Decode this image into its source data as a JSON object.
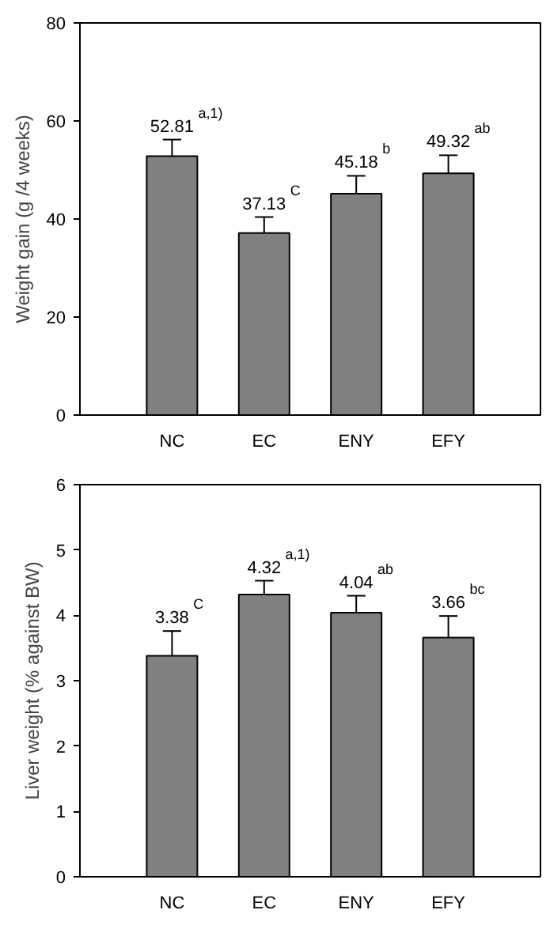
{
  "chart_data": [
    {
      "type": "bar",
      "ylabel": "Weight gain (g /4 weeks)",
      "categories": [
        "NC",
        "EC",
        "ENY",
        "EFY"
      ],
      "values": [
        52.81,
        37.13,
        45.18,
        49.32
      ],
      "color": "#808080",
      "errors": [
        [
          52.81,
          56.2
        ],
        [
          37.13,
          40.4
        ],
        [
          45.18,
          48.8
        ],
        [
          49.32,
          53.0
        ]
      ],
      "data_labels": true,
      "annotations": [
        "a,1)",
        "C",
        "b",
        "ab"
      ],
      "ylim": [
        0,
        80
      ],
      "yticks": [
        0,
        20,
        40,
        60,
        80
      ],
      "grid": false
    },
    {
      "type": "bar",
      "ylabel": "Liver weight (% against BW)",
      "categories": [
        "NC",
        "EC",
        "ENY",
        "EFY"
      ],
      "values": [
        3.38,
        4.32,
        4.04,
        3.66
      ],
      "color": "#808080",
      "errors": [
        [
          3.38,
          3.76
        ],
        [
          4.32,
          4.53
        ],
        [
          4.04,
          4.3
        ],
        [
          3.66,
          3.99
        ]
      ],
      "data_labels": true,
      "annotations": [
        "C",
        "a,1)",
        "ab",
        "bc"
      ],
      "ylim": [
        0,
        6
      ],
      "yticks": [
        0,
        1,
        2,
        3,
        4,
        5,
        6
      ],
      "grid": false
    }
  ]
}
